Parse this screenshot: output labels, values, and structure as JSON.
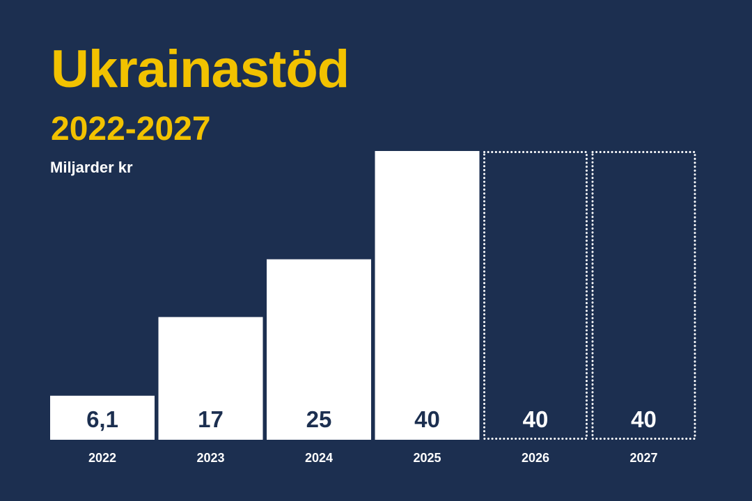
{
  "header": {
    "title": "Ukrainastöd",
    "subtitle": "2022-2027",
    "unit": "Miljarder kr"
  },
  "colors": {
    "background": "#1c2f50",
    "accent": "#f2c200",
    "bar_fill": "#ffffff",
    "text_on_bar": "#1c2f50",
    "text_light": "#ffffff"
  },
  "chart_data": {
    "type": "bar",
    "title": "Ukrainastöd",
    "subtitle": "2022-2027",
    "ylabel": "Miljarder kr",
    "xlabel": "",
    "categories": [
      "2022",
      "2023",
      "2024",
      "2025",
      "2026",
      "2027"
    ],
    "values": [
      6.1,
      17,
      25,
      40,
      40,
      40
    ],
    "value_labels": [
      "6,1",
      "17",
      "25",
      "40",
      "40",
      "40"
    ],
    "bar_style": [
      "solid",
      "solid",
      "solid",
      "solid",
      "dotted-outline",
      "dotted-outline"
    ],
    "ylim": [
      0,
      40
    ],
    "grid": false,
    "legend": "none"
  }
}
